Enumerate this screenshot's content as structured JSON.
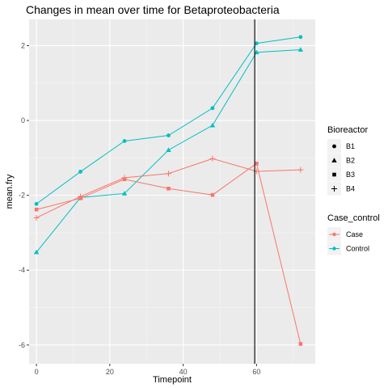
{
  "chart_data": {
    "type": "line",
    "title": "Changes in mean over time for  Betaproteobacteria",
    "xlabel": "Timepoint",
    "ylabel": "mean.fry",
    "xlim": [
      -2,
      76
    ],
    "ylim": [
      -6.5,
      2.7
    ],
    "x_ticks": [
      0,
      20,
      40,
      60
    ],
    "x_tick_labels": [
      "0",
      "20",
      "40",
      "60"
    ],
    "y_ticks": [
      -6,
      -4,
      -2,
      0,
      2
    ],
    "y_tick_labels": [
      "-6",
      "-4",
      "-2",
      "0",
      "2"
    ],
    "vline_x": 59.5,
    "grid": true,
    "legend_position": "right",
    "colors": {
      "Case": "#F8766D",
      "Control": "#00BFC4"
    },
    "legends": [
      {
        "title": "Bioreactor",
        "items": [
          {
            "label": "B1",
            "shape": "circle"
          },
          {
            "label": "B2",
            "shape": "triangle"
          },
          {
            "label": "B3",
            "shape": "square"
          },
          {
            "label": "B4",
            "shape": "plus"
          }
        ]
      },
      {
        "title": "Case_control",
        "items": [
          {
            "label": "Case",
            "color": "#F8766D"
          },
          {
            "label": "Control",
            "color": "#00BFC4"
          }
        ]
      }
    ],
    "series": [
      {
        "group": "Control",
        "shape": "circle",
        "x": [
          0,
          12,
          24,
          36,
          48,
          60,
          72
        ],
        "y": [
          -2.23,
          -1.37,
          -0.55,
          -0.4,
          0.33,
          2.06,
          2.23
        ]
      },
      {
        "group": "Control",
        "shape": "triangle",
        "x": [
          0,
          12,
          24,
          36,
          48,
          60,
          72
        ],
        "y": [
          -3.52,
          -2.06,
          -1.95,
          -0.79,
          -0.13,
          1.82,
          1.89
        ]
      },
      {
        "group": "Case",
        "shape": "square",
        "x": [
          0,
          12,
          24,
          36,
          48,
          60,
          72
        ],
        "y": [
          -2.38,
          -2.08,
          -1.57,
          -1.82,
          -1.99,
          -1.15,
          -5.97
        ]
      },
      {
        "group": "Case",
        "shape": "plus",
        "x": [
          0,
          12,
          24,
          36,
          48,
          60,
          72
        ],
        "y": [
          -2.6,
          -2.03,
          -1.53,
          -1.42,
          -1.02,
          -1.36,
          -1.32
        ]
      }
    ]
  }
}
